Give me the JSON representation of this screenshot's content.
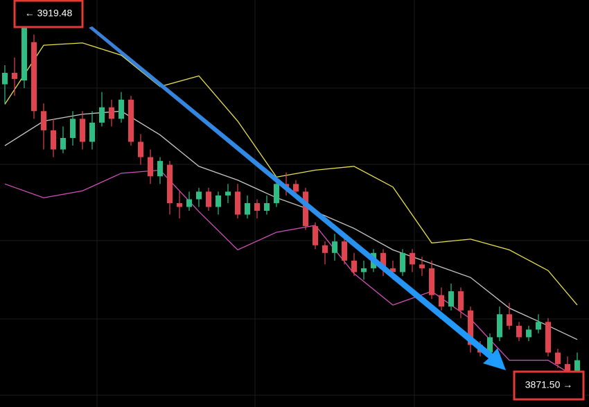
{
  "chart_data": {
    "type": "candlestick",
    "ylim": [
      3868.4,
      3921.5
    ],
    "up_color": "#2ebd85",
    "down_color": "#e0444e",
    "open": [
      3910.5,
      3912,
      3911,
      3916,
      3907,
      3904.5,
      3902,
      3903.5,
      3906,
      3903,
      3905.5,
      3907.5,
      3906,
      3908.5,
      3903,
      3901,
      3898.5,
      3900,
      3895,
      3894.5,
      3895.5,
      3896.5,
      3894.5,
      3896,
      3896.5,
      3893.5,
      3895,
      3894,
      3895,
      3897.5,
      3897.5,
      3896.5,
      3892,
      3889.5,
      3888.5,
      3890,
      3887.5,
      3886,
      3886.5,
      3888.5,
      3886.5,
      3886,
      3888.5,
      3887,
      3886.5,
      3883,
      3881.5,
      3883.5,
      3881,
      3876.5,
      3875.5,
      3877.5,
      3880.5,
      3879,
      3877.5,
      3878.5,
      3879.5,
      3875.5,
      3874,
      3872.5
    ],
    "high": [
      3913,
      3914,
      3919.48,
      3917,
      3908,
      3906,
      3905,
      3907,
      3907,
      3907,
      3909.5,
      3908.5,
      3909.5,
      3909,
      3904,
      3902,
      3901,
      3900.5,
      3896.5,
      3896.5,
      3897,
      3897,
      3896.5,
      3897.5,
      3897.5,
      3896,
      3895.5,
      3896,
      3898.5,
      3899,
      3898,
      3897,
      3892.5,
      3890,
      3891,
      3890.5,
      3888.5,
      3887.5,
      3889,
      3889,
      3887.5,
      3889,
      3889,
      3888,
      3887.5,
      3884,
      3884.5,
      3884,
      3881.5,
      3877,
      3878,
      3881.5,
      3882,
      3879.5,
      3879,
      3880.5,
      3880,
      3876,
      3875,
      3875.5
    ],
    "low": [
      3908,
      3909,
      3910,
      3906,
      3902,
      3901,
      3901.5,
      3902.5,
      3902,
      3902,
      3905,
      3905,
      3905.5,
      3902.5,
      3900,
      3897.5,
      3897.5,
      3893.5,
      3893,
      3894,
      3894.5,
      3894,
      3893.5,
      3895,
      3893,
      3893,
      3893,
      3893.5,
      3894.5,
      3896,
      3896,
      3891.5,
      3889,
      3887,
      3887.5,
      3887,
      3885.5,
      3885,
      3886,
      3885.5,
      3885,
      3885.5,
      3886,
      3885.5,
      3882.5,
      3881,
      3881,
      3880,
      3875.5,
      3875,
      3875,
      3877,
      3878.5,
      3877,
      3877,
      3878,
      3875,
      3873.5,
      3872,
      3871.5
    ],
    "close": [
      3912,
      3911.2,
      3919.48,
      3907,
      3904.5,
      3902,
      3903.5,
      3906,
      3903,
      3905.5,
      3907.5,
      3906,
      3908.5,
      3903,
      3901,
      3898.5,
      3900.5,
      3895,
      3894.5,
      3895.5,
      3896.5,
      3894.5,
      3896,
      3896.5,
      3893.5,
      3895,
      3894,
      3895,
      3897.5,
      3897,
      3896.5,
      3892,
      3889.5,
      3888.5,
      3890,
      3887.5,
      3886,
      3886.5,
      3888.5,
      3886.5,
      3886,
      3888.5,
      3887,
      3886.5,
      3883,
      3881.5,
      3883.5,
      3881,
      3876.5,
      3875.5,
      3877.5,
      3880.5,
      3879,
      3877.5,
      3878.5,
      3879.5,
      3875.5,
      3874,
      3872.5,
      3874.5
    ],
    "band_x": [
      0,
      4,
      8,
      12,
      16,
      20,
      24,
      28,
      32,
      36,
      40,
      44,
      48,
      52,
      56,
      59
    ],
    "bands": [
      {
        "color": "#e8e04a",
        "values": [
          3907.9,
          3915.6,
          3915.9,
          3914.3,
          3910.2,
          3911.6,
          3905.7,
          3898.4,
          3899.3,
          3899.8,
          3897.1,
          3889.8,
          3890.3,
          3888.9,
          3886.2,
          3881.7
        ]
      },
      {
        "color": "#c8c8c8",
        "values": [
          3902.5,
          3905.7,
          3906.6,
          3907.0,
          3903.9,
          3899.8,
          3898.0,
          3895.7,
          3893.9,
          3891.7,
          3888.9,
          3887.1,
          3885.3,
          3881.3,
          3879.0,
          3877.2
        ]
      },
      {
        "color": "#d04fb8",
        "values": [
          3897.5,
          3895.7,
          3896.6,
          3898.9,
          3899.3,
          3893.9,
          3888.9,
          3891.2,
          3892.1,
          3885.8,
          3881.7,
          3883.5,
          3879.9,
          3874.5,
          3874.5,
          3872.2
        ]
      }
    ],
    "high_label": "← 3919.48",
    "low_label": "3871.50 →"
  }
}
